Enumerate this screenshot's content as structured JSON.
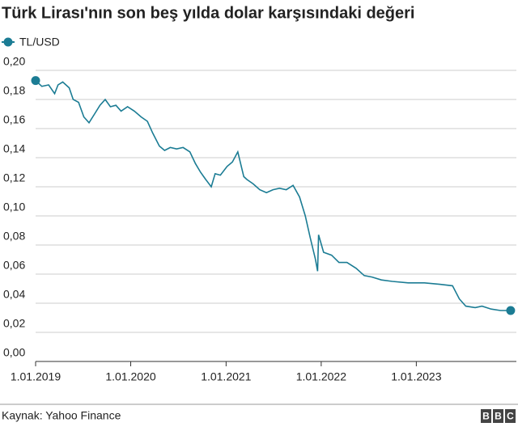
{
  "chart_data": {
    "type": "line",
    "title": "Türk Lirası'nın son beş yılda dolar karşısındaki değeri",
    "source": "Kaynak: Yahoo Finance",
    "logo": [
      "B",
      "B",
      "C"
    ],
    "x": [
      "2019-01-01",
      "2019-01-25",
      "2019-02-20",
      "2019-03-15",
      "2019-03-28",
      "2019-04-15",
      "2019-05-10",
      "2019-05-25",
      "2019-06-15",
      "2019-07-05",
      "2019-07-25",
      "2019-08-15",
      "2019-09-05",
      "2019-09-25",
      "2019-10-15",
      "2019-11-05",
      "2019-11-25",
      "2019-12-20",
      "2020-01-15",
      "2020-02-10",
      "2020-03-05",
      "2020-03-25",
      "2020-04-20",
      "2020-05-10",
      "2020-06-01",
      "2020-06-25",
      "2020-07-20",
      "2020-08-15",
      "2020-09-05",
      "2020-09-25",
      "2020-10-15",
      "2020-11-05",
      "2020-11-20",
      "2020-12-10",
      "2021-01-05",
      "2021-01-25",
      "2021-02-15",
      "2021-03-10",
      "2021-03-22",
      "2021-04-15",
      "2021-05-10",
      "2021-06-05",
      "2021-06-30",
      "2021-07-25",
      "2021-08-20",
      "2021-09-15",
      "2021-10-10",
      "2021-11-01",
      "2021-11-20",
      "2021-12-10",
      "2021-12-18",
      "2021-12-22",
      "2022-01-10",
      "2022-02-10",
      "2022-03-10",
      "2022-04-10",
      "2022-05-15",
      "2022-06-15",
      "2022-07-15",
      "2022-08-20",
      "2022-10-01",
      "2022-12-01",
      "2023-02-01",
      "2023-04-01",
      "2023-05-20",
      "2023-06-15",
      "2023-07-10",
      "2023-08-15",
      "2023-09-10",
      "2023-10-15",
      "2023-11-20",
      "2023-12-29"
    ],
    "series": [
      {
        "name": "TL/USD",
        "color": "#1b7c94",
        "values": [
          0.193,
          0.189,
          0.19,
          0.184,
          0.19,
          0.192,
          0.188,
          0.18,
          0.178,
          0.168,
          0.164,
          0.17,
          0.176,
          0.18,
          0.175,
          0.176,
          0.172,
          0.175,
          0.172,
          0.168,
          0.165,
          0.157,
          0.148,
          0.145,
          0.147,
          0.146,
          0.147,
          0.144,
          0.136,
          0.13,
          0.125,
          0.12,
          0.129,
          0.128,
          0.134,
          0.137,
          0.144,
          0.127,
          0.125,
          0.122,
          0.118,
          0.116,
          0.118,
          0.119,
          0.118,
          0.121,
          0.113,
          0.1,
          0.085,
          0.07,
          0.062,
          0.087,
          0.075,
          0.073,
          0.068,
          0.068,
          0.064,
          0.059,
          0.058,
          0.056,
          0.055,
          0.054,
          0.054,
          0.053,
          0.052,
          0.043,
          0.038,
          0.037,
          0.038,
          0.036,
          0.035,
          0.035
        ]
      }
    ],
    "xlim": [
      "2019-01-01",
      "2024-01-20"
    ],
    "xticks": [
      {
        "value": "2019-01-01",
        "label": "1.01.2019"
      },
      {
        "value": "2020-01-01",
        "label": "1.01.2020"
      },
      {
        "value": "2021-01-01",
        "label": "1.01.2021"
      },
      {
        "value": "2022-01-01",
        "label": "1.01.2022"
      },
      {
        "value": "2023-01-01",
        "label": "1.01.2023"
      }
    ],
    "ylim": [
      0,
      0.2
    ],
    "yticks": [
      {
        "value": 0,
        "label": "0,00"
      },
      {
        "value": 0.02,
        "label": "0,02"
      },
      {
        "value": 0.04,
        "label": "0,04"
      },
      {
        "value": 0.06,
        "label": "0,06"
      },
      {
        "value": 0.08,
        "label": "0,08"
      },
      {
        "value": 0.1,
        "label": "0,10"
      },
      {
        "value": 0.12,
        "label": "0,12"
      },
      {
        "value": 0.14,
        "label": "0,14"
      },
      {
        "value": 0.16,
        "label": "0,16"
      },
      {
        "value": 0.18,
        "label": "0,18"
      },
      {
        "value": 0.2,
        "label": "0,20"
      }
    ],
    "grid": true
  }
}
